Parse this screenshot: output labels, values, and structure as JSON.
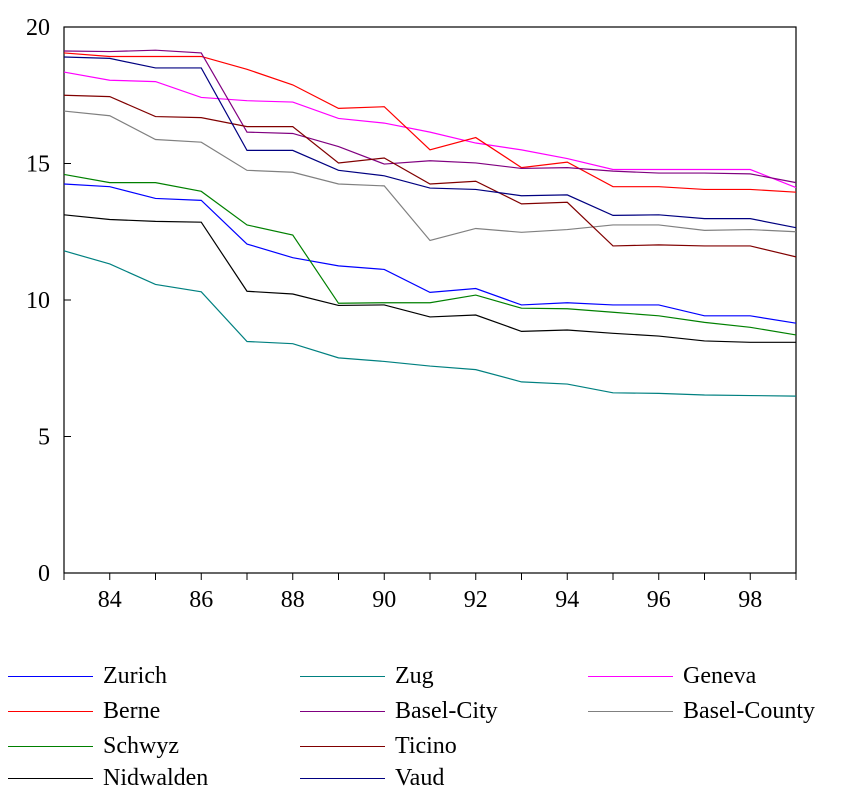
{
  "chart_data": {
    "type": "line",
    "x": [
      83,
      84,
      85,
      86,
      87,
      88,
      89,
      90,
      91,
      92,
      93,
      94,
      95,
      96,
      97,
      98,
      99
    ],
    "x_tick_labels": [
      "84",
      "86",
      "88",
      "90",
      "92",
      "94",
      "96",
      "98"
    ],
    "y_tick_labels": [
      "0",
      "5",
      "10",
      "15",
      "20"
    ],
    "xlim": [
      83,
      99
    ],
    "ylim": [
      0,
      20
    ],
    "grid": false,
    "legend_position": "bottom",
    "series": [
      {
        "name": "Zurich",
        "color": "#0000ff",
        "values": [
          14.25,
          14.15,
          13.72,
          13.65,
          12.05,
          11.55,
          11.25,
          11.12,
          10.28,
          10.42,
          9.82,
          9.9,
          9.82,
          9.82,
          9.42,
          9.42,
          9.15
        ]
      },
      {
        "name": "Zug",
        "color": "#008080",
        "values": [
          11.8,
          11.32,
          10.57,
          10.3,
          8.48,
          8.4,
          7.88,
          7.75,
          7.58,
          7.45,
          7.0,
          6.92,
          6.6,
          6.58,
          6.52,
          6.5,
          6.48
        ]
      },
      {
        "name": "Geneva",
        "color": "#ff00ff",
        "values": [
          18.35,
          18.05,
          18.0,
          17.42,
          17.3,
          17.25,
          16.65,
          16.48,
          16.15,
          15.75,
          15.5,
          15.18,
          14.78,
          14.78,
          14.78,
          14.78,
          14.12
        ]
      },
      {
        "name": "Berne",
        "color": "#ff0000",
        "values": [
          19.05,
          18.92,
          18.92,
          18.92,
          18.45,
          17.88,
          17.02,
          17.08,
          15.5,
          15.95,
          14.85,
          15.05,
          14.15,
          14.15,
          14.05,
          14.05,
          13.95
        ]
      },
      {
        "name": "Basel-City",
        "color": "#800080",
        "values": [
          19.12,
          19.1,
          19.15,
          19.05,
          16.15,
          16.1,
          15.62,
          14.98,
          15.1,
          15.02,
          14.82,
          14.85,
          14.72,
          14.65,
          14.65,
          14.62,
          14.3
        ]
      },
      {
        "name": "Basel-County",
        "color": "#808080",
        "values": [
          16.92,
          16.75,
          15.88,
          15.78,
          14.75,
          14.68,
          14.25,
          14.18,
          12.18,
          12.62,
          12.48,
          12.58,
          12.75,
          12.75,
          12.55,
          12.58,
          12.5
        ]
      },
      {
        "name": "Schwyz",
        "color": "#008000",
        "values": [
          14.6,
          14.3,
          14.3,
          13.98,
          12.75,
          12.38,
          9.88,
          9.9,
          9.9,
          10.18,
          9.7,
          9.68,
          9.55,
          9.42,
          9.18,
          9.0,
          8.72
        ]
      },
      {
        "name": "Ticino",
        "color": "#800000",
        "values": [
          17.5,
          17.45,
          16.72,
          16.68,
          16.35,
          16.35,
          15.02,
          15.2,
          14.25,
          14.35,
          13.52,
          13.58,
          11.98,
          12.02,
          11.98,
          11.98,
          11.58
        ]
      },
      {
        "name": "Nidwalden",
        "color": "#000000",
        "values": [
          13.12,
          12.95,
          12.88,
          12.85,
          10.32,
          10.22,
          9.8,
          9.82,
          9.38,
          9.45,
          8.85,
          8.9,
          8.78,
          8.68,
          8.5,
          8.45,
          8.45
        ]
      },
      {
        "name": "Vaud",
        "color": "#000080",
        "values": [
          18.9,
          18.85,
          18.5,
          18.5,
          15.48,
          15.48,
          14.75,
          14.55,
          14.1,
          14.05,
          13.82,
          13.85,
          13.1,
          13.12,
          12.98,
          12.98,
          12.65
        ]
      }
    ]
  }
}
